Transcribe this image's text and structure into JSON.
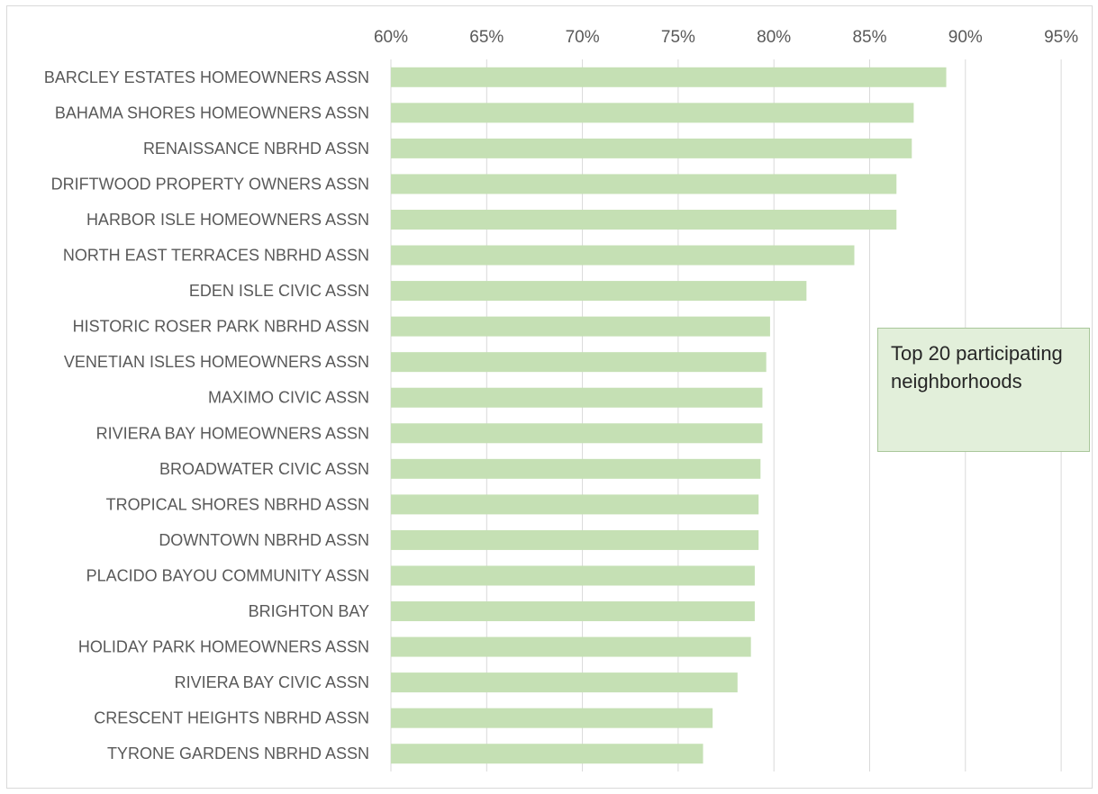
{
  "chart_data": {
    "type": "bar",
    "orientation": "horizontal",
    "title": "",
    "xlabel": "",
    "ylabel": "",
    "xlim": [
      0.6,
      0.975
    ],
    "x_ticks": [
      0.6,
      0.65,
      0.7,
      0.75,
      0.8,
      0.85,
      0.9,
      0.95
    ],
    "x_tick_labels": [
      "60%",
      "65%",
      "70%",
      "75%",
      "80%",
      "85%",
      "90%",
      "95%"
    ],
    "grid": "vertical",
    "bar_color": "#c5e0b4",
    "categories": [
      "BARCLEY ESTATES HOMEOWNERS ASSN",
      "BAHAMA SHORES HOMEOWNERS ASSN",
      "RENAISSANCE NBRHD ASSN",
      "DRIFTWOOD PROPERTY OWNERS ASSN",
      "HARBOR ISLE HOMEOWNERS ASSN",
      "NORTH EAST TERRACES NBRHD ASSN",
      "EDEN ISLE CIVIC ASSN",
      "HISTORIC ROSER PARK NBRHD ASSN",
      "VENETIAN ISLES HOMEOWNERS ASSN",
      "MAXIMO CIVIC ASSN",
      "RIVIERA BAY HOMEOWNERS ASSN",
      "BROADWATER CIVIC ASSN",
      "TROPICAL SHORES NBRHD ASSN",
      "DOWNTOWN NBRHD ASSN",
      "PLACIDO BAYOU COMMUNITY ASSN",
      "BRIGHTON BAY",
      "HOLIDAY PARK HOMEOWNERS ASSN",
      "RIVIERA BAY CIVIC ASSN",
      "CRESCENT HEIGHTS NBRHD ASSN",
      "TYRONE GARDENS NBRHD ASSN"
    ],
    "values": [
      0.89,
      0.873,
      0.872,
      0.864,
      0.864,
      0.842,
      0.817,
      0.798,
      0.796,
      0.794,
      0.794,
      0.793,
      0.792,
      0.792,
      0.79,
      0.79,
      0.788,
      0.781,
      0.768,
      0.763
    ],
    "annotation": "Top 20 participating neighborhoods"
  }
}
